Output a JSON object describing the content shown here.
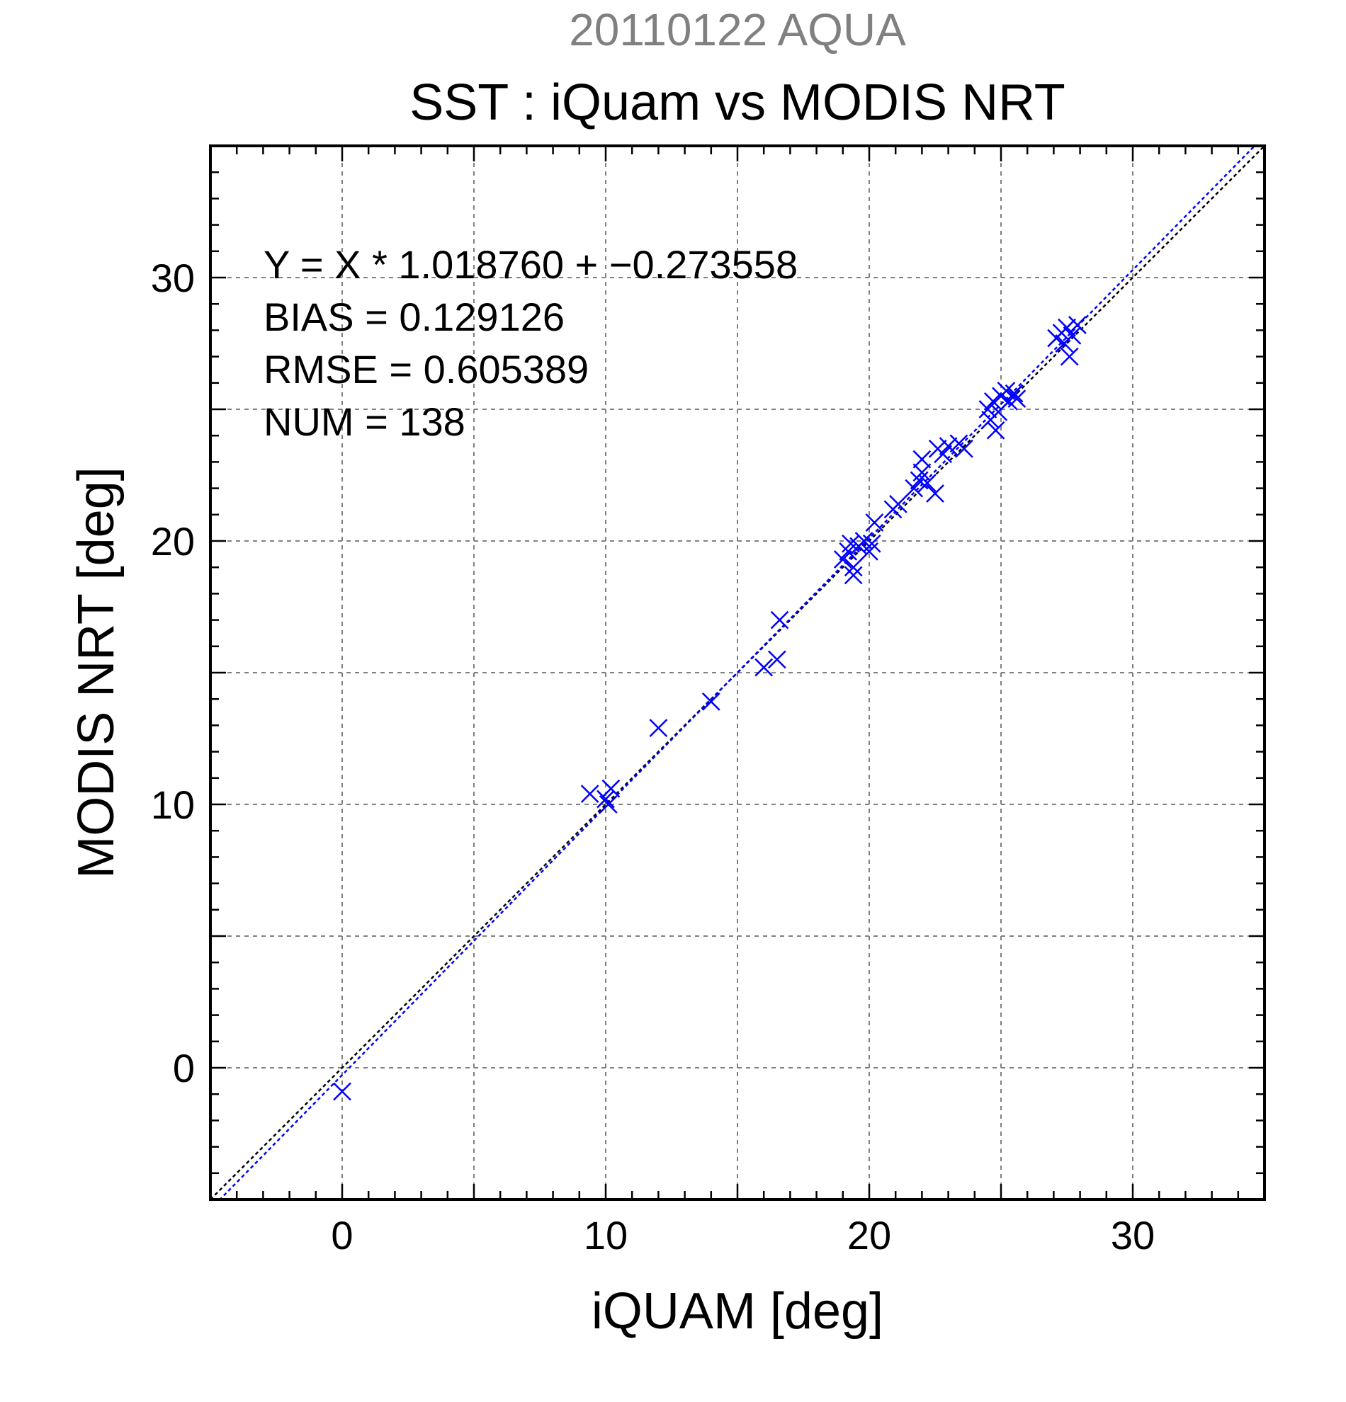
{
  "chart_data": {
    "type": "scatter",
    "title_date": "20110122 AQUA",
    "title": "SST : iQuam vs MODIS NRT",
    "xlabel": "iQUAM [deg]",
    "ylabel": "MODIS NRT [deg]",
    "xlim": [
      -5,
      35
    ],
    "ylim": [
      -5,
      35
    ],
    "xticks": [
      0,
      10,
      20,
      30
    ],
    "yticks": [
      0,
      10,
      20,
      30
    ],
    "grid": true,
    "colors": {
      "points": "#0000ff",
      "fit_line": "#0000ff",
      "identity_line": "#000000",
      "title_date": "#808080",
      "text": "#000000"
    },
    "stats": [
      "Y = X * 1.018760 + −0.273558",
      "BIAS = 0.129126",
      "RMSE = 0.605389",
      "NUM = 138"
    ],
    "fit": {
      "slope": 1.01876,
      "intercept": -0.273558
    },
    "points": [
      [
        0.0,
        -0.9
      ],
      [
        9.4,
        10.4
      ],
      [
        10.0,
        10.2
      ],
      [
        10.2,
        10.6
      ],
      [
        10.1,
        10.0
      ],
      [
        12.0,
        12.9
      ],
      [
        14.0,
        13.9
      ],
      [
        16.0,
        15.2
      ],
      [
        16.5,
        15.5
      ],
      [
        16.6,
        17.0
      ],
      [
        19.0,
        19.3
      ],
      [
        19.2,
        19.6
      ],
      [
        19.3,
        19.9
      ],
      [
        19.4,
        19.0
      ],
      [
        19.4,
        18.7
      ],
      [
        19.6,
        19.8
      ],
      [
        19.8,
        20.0
      ],
      [
        20.0,
        19.6
      ],
      [
        20.1,
        19.9
      ],
      [
        20.2,
        20.7
      ],
      [
        20.9,
        21.2
      ],
      [
        21.1,
        21.4
      ],
      [
        21.7,
        22.0
      ],
      [
        21.9,
        22.3
      ],
      [
        22.0,
        22.6
      ],
      [
        22.0,
        23.1
      ],
      [
        22.2,
        22.2
      ],
      [
        22.5,
        21.8
      ],
      [
        22.6,
        23.5
      ],
      [
        22.8,
        23.3
      ],
      [
        23.0,
        23.6
      ],
      [
        23.4,
        23.7
      ],
      [
        23.6,
        23.5
      ],
      [
        24.5,
        25.0
      ],
      [
        24.6,
        24.6
      ],
      [
        24.7,
        25.3
      ],
      [
        24.8,
        24.2
      ],
      [
        24.9,
        24.9
      ],
      [
        25.0,
        25.5
      ],
      [
        25.2,
        25.7
      ],
      [
        25.3,
        25.3
      ],
      [
        25.5,
        25.6
      ],
      [
        25.6,
        25.4
      ],
      [
        27.1,
        27.7
      ],
      [
        27.3,
        27.9
      ],
      [
        27.4,
        27.5
      ],
      [
        27.5,
        28.1
      ],
      [
        27.6,
        27.0
      ],
      [
        27.7,
        27.8
      ],
      [
        27.9,
        28.2
      ]
    ]
  }
}
